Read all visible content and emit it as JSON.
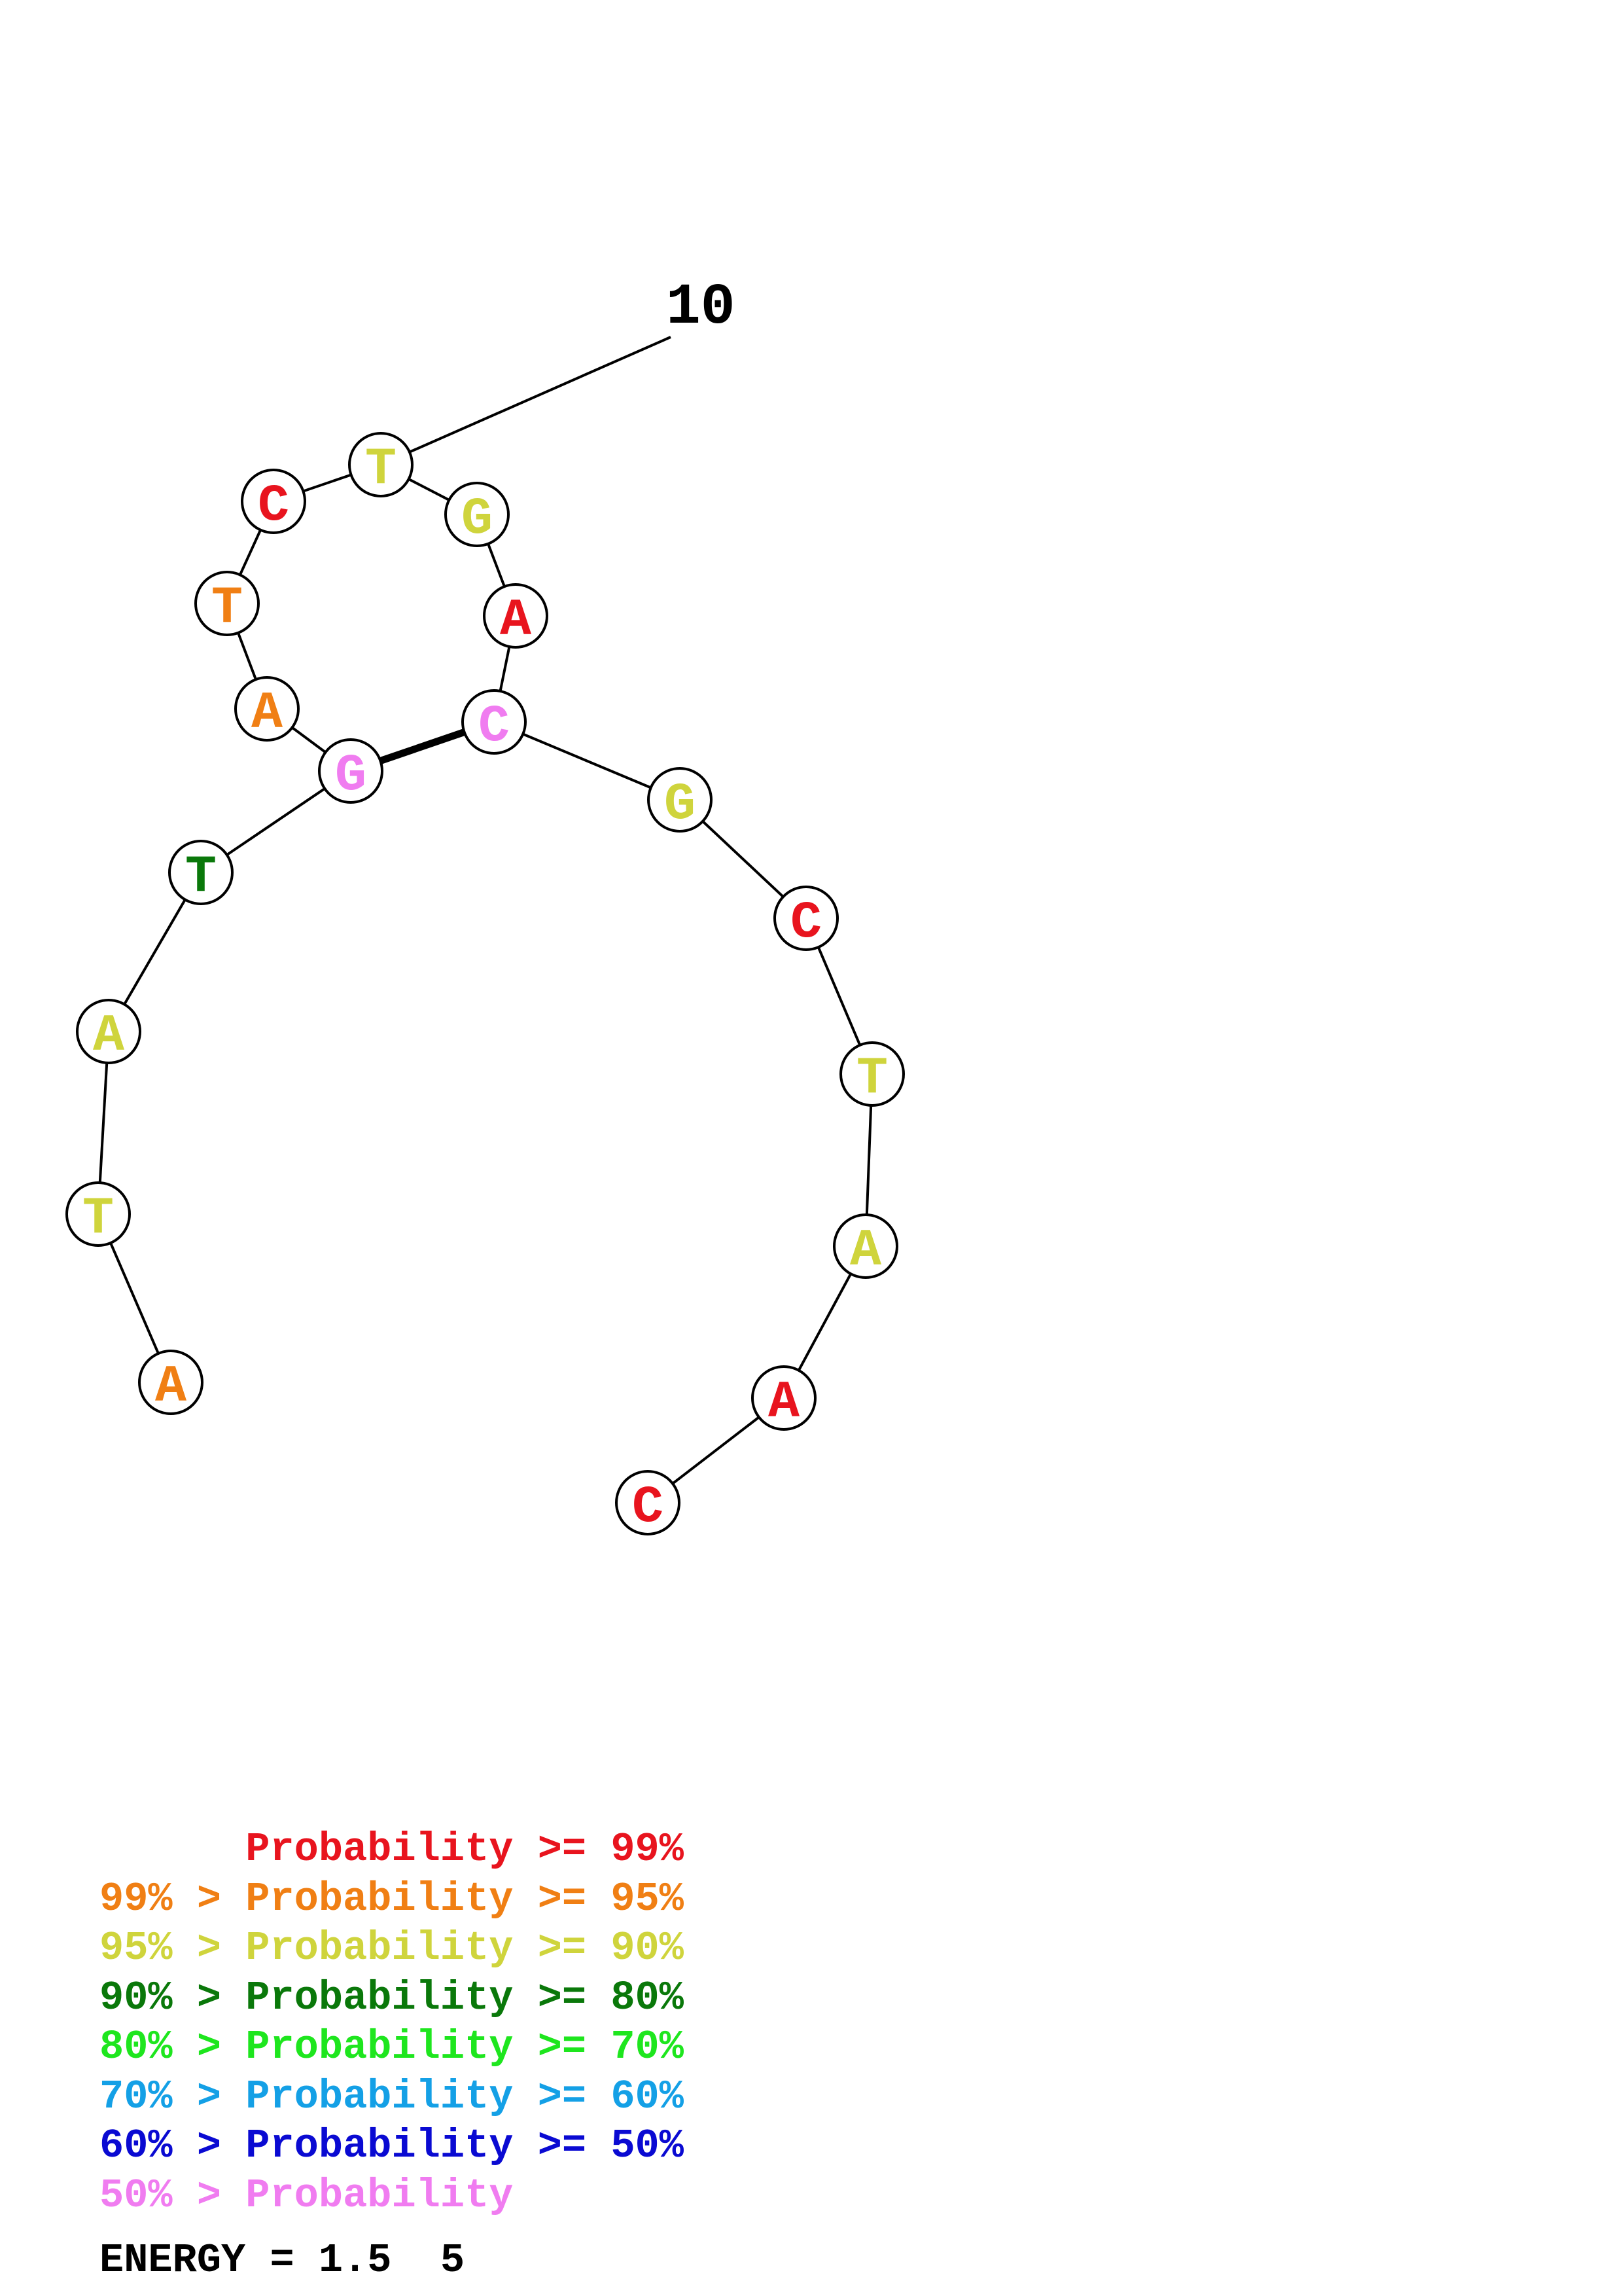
{
  "sequence": [
    "C",
    "A",
    "A",
    "T",
    "C",
    "G",
    "C",
    "A",
    "G",
    "T",
    "C",
    "T",
    "A",
    "G",
    "T",
    "A",
    "T",
    "A"
  ],
  "bases_shown": [
    {
      "letter": "C",
      "color": "#e8141e"
    },
    {
      "letter": "A",
      "color": "#e8141e"
    },
    {
      "letter": "A",
      "color": "#cfd43c"
    },
    {
      "letter": "T",
      "color": "#cfd43c"
    },
    {
      "letter": "C",
      "color": "#e8141e"
    },
    {
      "letter": "G",
      "color": "#cfd43c"
    },
    {
      "letter": "C",
      "color": "#f07cf0"
    },
    {
      "letter": "A",
      "color": "#e8141e"
    },
    {
      "letter": "G",
      "color": "#cfd43c"
    },
    {
      "letter": "T",
      "color": "#cfd43c"
    },
    {
      "letter": "C",
      "color": "#e8141e"
    },
    {
      "letter": "T",
      "color": "#f07f14"
    },
    {
      "letter": "A",
      "color": "#f07f14"
    },
    {
      "letter": "G",
      "color": "#f07cf0"
    },
    {
      "letter": "T",
      "color": "#0a780a"
    },
    {
      "letter": "A",
      "color": "#cfd43c"
    },
    {
      "letter": "T",
      "color": "#cfd43c"
    },
    {
      "letter": "A",
      "color": "#f07f14"
    }
  ],
  "base_pairs": [
    [
      7,
      14
    ]
  ],
  "index_label": "10",
  "legend": [
    {
      "text": "      Probability >= 99%",
      "color": "#e8141e"
    },
    {
      "text": "99% > Probability >= 95%",
      "color": "#f07f14"
    },
    {
      "text": "95% > Probability >= 90%",
      "color": "#cfd43c"
    },
    {
      "text": "90% > Probability >= 80%",
      "color": "#0a780a"
    },
    {
      "text": "80% > Probability >= 70%",
      "color": "#1ee61e"
    },
    {
      "text": "70% > Probability >= 60%",
      "color": "#14a0e6"
    },
    {
      "text": "60% > Probability >= 50%",
      "color": "#0a0ad2"
    },
    {
      "text": "50% > Probability",
      "color": "#f07cf0"
    }
  ],
  "energy": "ENERGY = 1.5  5"
}
